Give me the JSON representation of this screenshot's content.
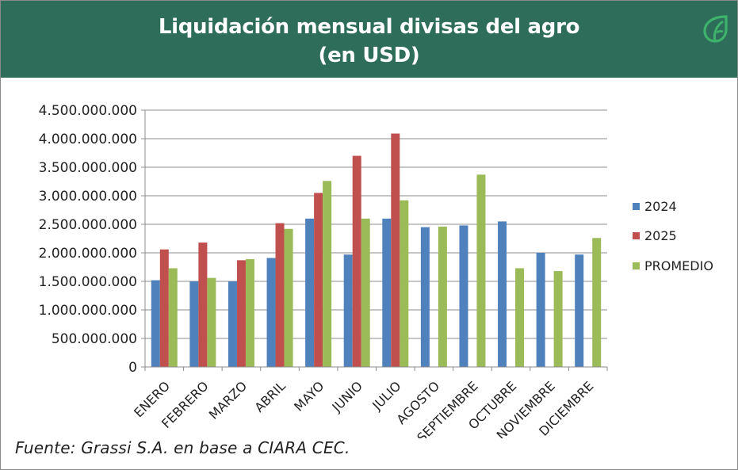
{
  "header": {
    "title_line1": "Liquidación mensual divisas del agro",
    "title_line2": "(en USD)"
  },
  "source_note": "Fuente: Grassi S.A. en base a CIARA CEC.",
  "colors": {
    "header_bg": "#2e6d5a",
    "series_2024": "#4f81bd",
    "series_2025": "#c0504d",
    "series_promedio": "#9bbb59",
    "logo": "#3db36b"
  },
  "chart_data": {
    "type": "bar",
    "categories": [
      "ENERO",
      "FEBRERO",
      "MARZO",
      "ABRIL",
      "MAYO",
      "JUNIO",
      "JULIO",
      "AGOSTO",
      "SEPTIEMBRE",
      "OCTUBRE",
      "NOVIEMBRE",
      "DICIEMBRE"
    ],
    "series": [
      {
        "name": "2024",
        "color": "#4f81bd",
        "values": [
          1520000000,
          1500000000,
          1500000000,
          1910000000,
          2600000000,
          1970000000,
          2600000000,
          2450000000,
          2480000000,
          2550000000,
          2000000000,
          1970000000
        ]
      },
      {
        "name": "2025",
        "color": "#c0504d",
        "values": [
          2060000000,
          2180000000,
          1870000000,
          2520000000,
          3050000000,
          3700000000,
          4090000000,
          null,
          null,
          null,
          null,
          null
        ]
      },
      {
        "name": "PROMEDIO",
        "color": "#9bbb59",
        "values": [
          1730000000,
          1560000000,
          1890000000,
          2420000000,
          3260000000,
          2600000000,
          2920000000,
          2460000000,
          3370000000,
          1730000000,
          1680000000,
          2260000000
        ]
      }
    ],
    "ylim": [
      0,
      4500000000
    ],
    "yticks": [
      0,
      500000000,
      1000000000,
      1500000000,
      2000000000,
      2500000000,
      3000000000,
      3500000000,
      4000000000,
      4500000000
    ],
    "ytick_labels": [
      "0",
      "500.000.000",
      "1.000.000.000",
      "1.500.000.000",
      "2.000.000.000",
      "2.500.000.000",
      "3.000.000.000",
      "3.500.000.000",
      "4.000.000.000",
      "4.500.000.000"
    ],
    "grid": true,
    "legend_position": "right"
  }
}
